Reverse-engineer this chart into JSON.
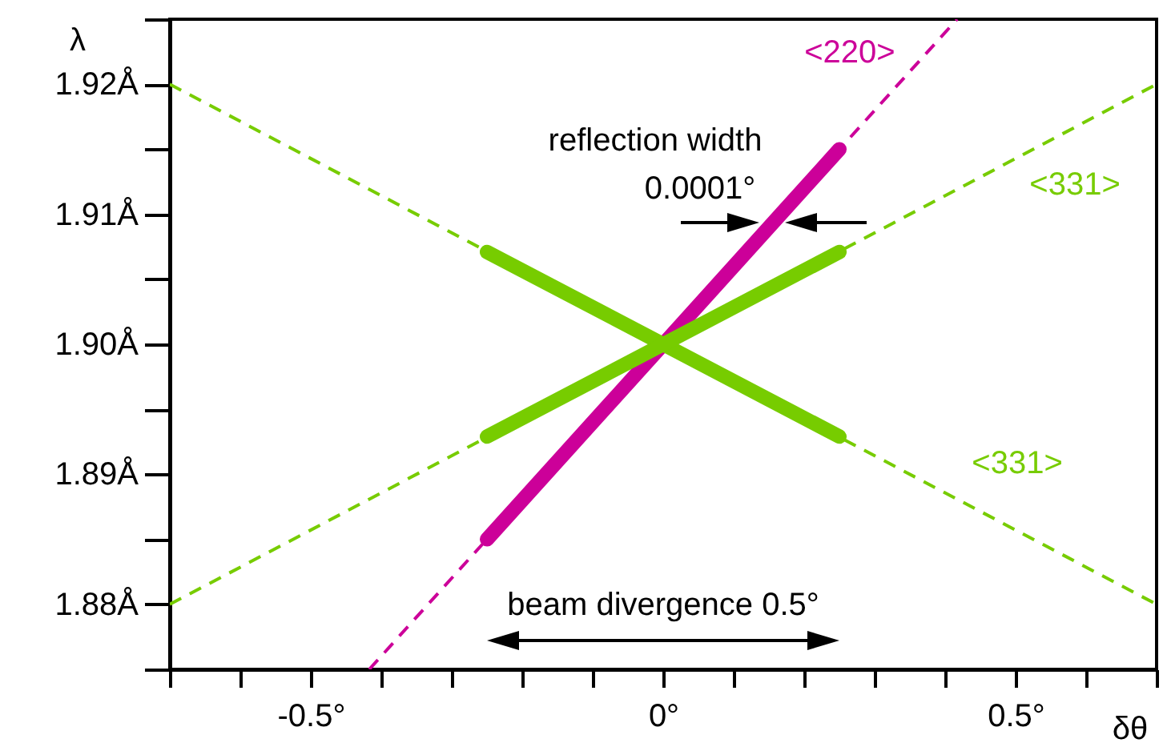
{
  "chart_data": {
    "type": "line",
    "xlabel": "δθ",
    "ylabel": "λ",
    "xlim": [
      -0.7,
      0.7
    ],
    "ylim": [
      1.875,
      1.925
    ],
    "xticks": [
      {
        "value": -0.7,
        "label": null
      },
      {
        "value": -0.6,
        "label": null
      },
      {
        "value": -0.5,
        "label": "-0.5°"
      },
      {
        "value": -0.4,
        "label": null
      },
      {
        "value": -0.3,
        "label": null
      },
      {
        "value": -0.2,
        "label": null
      },
      {
        "value": -0.1,
        "label": null
      },
      {
        "value": 0,
        "label": "0°"
      },
      {
        "value": 0.1,
        "label": null
      },
      {
        "value": 0.2,
        "label": null
      },
      {
        "value": 0.3,
        "label": null
      },
      {
        "value": 0.4,
        "label": null
      },
      {
        "value": 0.5,
        "label": "0.5°"
      },
      {
        "value": 0.6,
        "label": null
      },
      {
        "value": 0.7,
        "label": null
      }
    ],
    "yticks": [
      {
        "value": 1.875,
        "label": null
      },
      {
        "value": 1.88,
        "label": "1.88Å"
      },
      {
        "value": 1.885,
        "label": null
      },
      {
        "value": 1.89,
        "label": "1.89Å"
      },
      {
        "value": 1.895,
        "label": null
      },
      {
        "value": 1.9,
        "label": "1.90Å"
      },
      {
        "value": 1.905,
        "label": null
      },
      {
        "value": 1.91,
        "label": "1.91Å"
      },
      {
        "value": 1.915,
        "label": null
      },
      {
        "value": 1.92,
        "label": "1.92Å"
      },
      {
        "value": 1.925,
        "label": null
      }
    ],
    "series": [
      {
        "name": "<220>",
        "color": "#cc0099",
        "line_style": "dashed",
        "x": [
          -0.417,
          0.417
        ],
        "values": [
          1.875,
          1.925
        ]
      },
      {
        "name": "<331>",
        "color": "#77cc00",
        "line_style": "dashed",
        "x": [
          -0.7,
          0.7
        ],
        "values": [
          1.92,
          1.88
        ]
      },
      {
        "name": "<331>",
        "color": "#77cc00",
        "line_style": "dashed",
        "x": [
          -0.7,
          0.7
        ],
        "values": [
          1.88,
          1.92
        ]
      },
      {
        "color": "#cc0099",
        "line_style": "solid",
        "x": [
          -0.25,
          0.25
        ],
        "values": [
          1.885,
          1.915
        ]
      },
      {
        "color": "#77cc00",
        "line_style": "solid",
        "x": [
          -0.25,
          0.25
        ],
        "values": [
          1.9071,
          1.8929
        ]
      },
      {
        "color": "#77cc00",
        "line_style": "solid",
        "x": [
          -0.25,
          0.25
        ],
        "values": [
          1.8929,
          1.9071
        ]
      }
    ],
    "annotations": [
      "reflection width",
      "0.0001°",
      "beam divergence 0.5°"
    ]
  }
}
